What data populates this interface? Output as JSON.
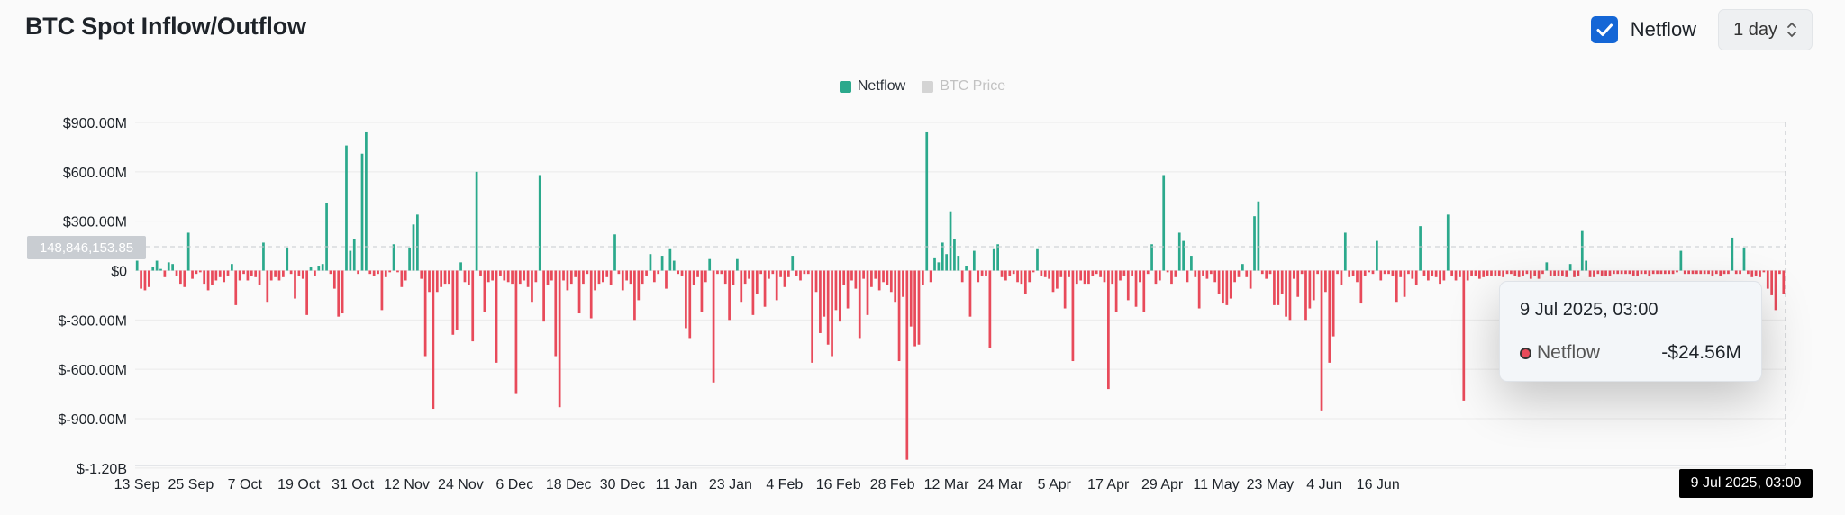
{
  "header": {
    "title": "BTC Spot Inflow/Outflow",
    "netflow_checkbox_label": "Netflow",
    "interval_select_value": "1 day"
  },
  "legend": {
    "items": [
      {
        "label": "Netflow",
        "color": "#2ba98c",
        "active": true
      },
      {
        "label": "BTC Price",
        "color": "#cfcfcf",
        "active": false
      }
    ]
  },
  "tooltip": {
    "date": "9 Jul 2025, 03:00",
    "series_name": "Netflow",
    "value": "-$24.56M"
  },
  "crosshair": {
    "x_label": "9 Jul 2025, 03:00",
    "y_label": "148,846,153.85"
  },
  "colors": {
    "positive": "#2ba98c",
    "negative": "#e84a5a",
    "grid": "#ebebeb",
    "axis_text": "#1e2329"
  },
  "chart_data": {
    "type": "bar",
    "title": "BTC Spot Inflow/Outflow",
    "series": [
      {
        "name": "Netflow"
      }
    ],
    "ylabel": "",
    "xlabel": "",
    "y_ticks": [
      "$900.00M",
      "$600.00M",
      "$300.00M",
      "$0",
      "$-300.00M",
      "$-600.00M",
      "$-900.00M",
      "$-1.20B"
    ],
    "y_tick_values": [
      900,
      600,
      300,
      0,
      -300,
      -600,
      -900,
      -1200
    ],
    "ylim": [
      -1200,
      900
    ],
    "unit": "USD millions",
    "x_ticks": [
      "13 Sep",
      "25 Sep",
      "7 Oct",
      "19 Oct",
      "31 Oct",
      "12 Nov",
      "24 Nov",
      "6 Dec",
      "18 Dec",
      "30 Dec",
      "11 Jan",
      "23 Jan",
      "4 Feb",
      "16 Feb",
      "28 Feb",
      "12 Mar",
      "24 Mar",
      "5 Apr",
      "17 Apr",
      "29 Apr",
      "11 May",
      "23 May",
      "4 Jun",
      "16 Jun"
    ],
    "grid": true,
    "start_date": "13 Sep 2024",
    "end_date": "9 Jul 2025",
    "values": [
      60,
      -110,
      -120,
      -100,
      20,
      60,
      10,
      -40,
      50,
      40,
      -30,
      -80,
      -100,
      230,
      -50,
      -20,
      -10,
      -80,
      -120,
      -90,
      -60,
      -40,
      -70,
      -30,
      40,
      -210,
      -60,
      -20,
      -60,
      -30,
      -40,
      -90,
      170,
      -190,
      -60,
      -40,
      -60,
      -40,
      140,
      -20,
      -170,
      -30,
      -50,
      -270,
      20,
      -30,
      30,
      40,
      410,
      -20,
      -110,
      -280,
      -260,
      760,
      120,
      190,
      -20,
      710,
      840,
      -20,
      -30,
      -20,
      -240,
      -40,
      -10,
      160,
      -10,
      -100,
      -60,
      140,
      280,
      340,
      -50,
      -520,
      -130,
      -840,
      -130,
      -100,
      -80,
      -80,
      -390,
      -360,
      50,
      -70,
      -90,
      -430,
      600,
      -30,
      -250,
      -70,
      -60,
      -560,
      -30,
      -60,
      -70,
      -80,
      -750,
      -80,
      -60,
      -100,
      -190,
      -70,
      580,
      -310,
      -90,
      -60,
      -520,
      -830,
      -60,
      -120,
      -80,
      -40,
      -260,
      -80,
      -20,
      -290,
      -120,
      -80,
      -70,
      -40,
      -90,
      220,
      -20,
      -120,
      -60,
      -80,
      -300,
      -180,
      -80,
      -30,
      100,
      -70,
      -20,
      90,
      -110,
      130,
      60,
      -20,
      -30,
      -350,
      -410,
      -90,
      -40,
      -250,
      -70,
      70,
      -680,
      -20,
      -20,
      -80,
      -300,
      -90,
      70,
      -190,
      -80,
      -50,
      -270,
      -140,
      -20,
      -220,
      -50,
      -20,
      -180,
      -40,
      -100,
      -40,
      90,
      -30,
      -60,
      -20,
      -20,
      -560,
      -130,
      -380,
      -280,
      -450,
      -520,
      -240,
      -310,
      -90,
      -230,
      -60,
      -110,
      -410,
      -50,
      -270,
      -100,
      -50,
      -120,
      -70,
      -90,
      -130,
      -190,
      -550,
      -160,
      -1150,
      -340,
      -460,
      -450,
      -90,
      840,
      -70,
      80,
      50,
      170,
      100,
      360,
      190,
      90,
      -70,
      30,
      -280,
      120,
      -70,
      -30,
      -30,
      -470,
      130,
      160,
      -40,
      -60,
      -30,
      -20,
      -70,
      -80,
      -140,
      -70,
      -10,
      130,
      -30,
      -40,
      -50,
      -130,
      -110,
      -40,
      -230,
      -40,
      -550,
      -80,
      -60,
      -80,
      -80,
      -30,
      -20,
      -40,
      -70,
      -720,
      -80,
      -250,
      -60,
      -30,
      -180,
      -30,
      -220,
      -70,
      -250,
      -20,
      160,
      -80,
      -60,
      580,
      -10,
      -80,
      -40,
      230,
      180,
      -70,
      90,
      -40,
      -230,
      -30,
      -50,
      -20,
      -70,
      -140,
      -200,
      -210,
      -170,
      -70,
      -40,
      40,
      -40,
      -110,
      330,
      420,
      -20,
      -50,
      -20,
      -210,
      -210,
      -140,
      -280,
      -300,
      -50,
      -160,
      -20,
      -300,
      -230,
      -180,
      -20,
      -850,
      -130,
      -560,
      -400,
      -20,
      -90,
      230,
      -40,
      -30,
      -70,
      -200,
      -30,
      -10,
      -20,
      180,
      -60,
      -20,
      -20,
      -30,
      -190,
      -40,
      -160,
      -20,
      -50,
      -90,
      270,
      -30,
      -60,
      -30,
      -40,
      -80,
      -60,
      340,
      -30,
      -60,
      -40,
      -790,
      -60,
      -30,
      -30,
      -50,
      -40,
      -30,
      -30,
      -30,
      -30,
      -40,
      -20,
      -20,
      -30,
      -40,
      -30,
      -20,
      -50,
      -30,
      -50,
      -20,
      50,
      -30,
      -30,
      -30,
      -30,
      -40,
      40,
      -40,
      -30,
      240,
      60,
      -40,
      -40,
      -20,
      -30,
      -30,
      -30,
      -20,
      -20,
      -20,
      -20,
      -20,
      -30,
      -30,
      -20,
      -20,
      -30,
      -20,
      -20,
      -20,
      -20,
      -20,
      -20,
      -10,
      120,
      -20,
      -20,
      -20,
      -20,
      -20,
      -20,
      -20,
      -30,
      -20,
      -30,
      -20,
      -20,
      200,
      -20,
      -20,
      140,
      -20,
      -40,
      -30,
      -40,
      -10,
      -110,
      -150,
      -240,
      -20,
      -140
    ]
  }
}
